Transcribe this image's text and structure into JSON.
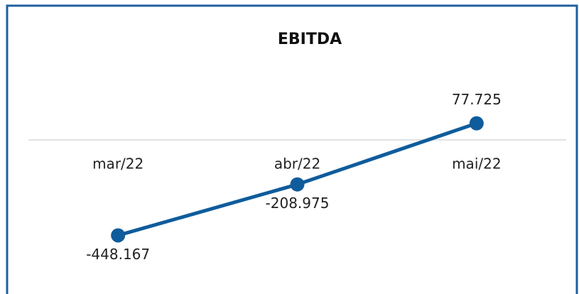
{
  "chart_data": {
    "type": "line",
    "title": "EBITDA",
    "categories": [
      "mar/22",
      "abr/22",
      "mai/22"
    ],
    "values": [
      -448167,
      -208975,
      77725
    ],
    "value_labels": [
      "-448.167",
      "-208.975",
      "77.725"
    ],
    "color": "#0f5c9c",
    "ylim": [
      -600000,
      300000
    ]
  }
}
